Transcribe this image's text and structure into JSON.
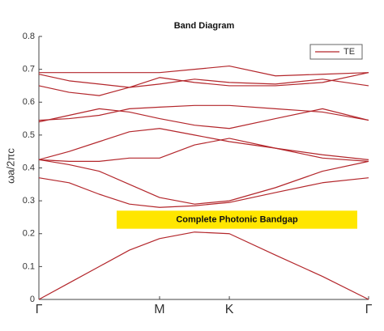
{
  "chart_data": {
    "type": "line",
    "title": "Band Diagram",
    "ylabel": "ωa/2πc",
    "x": [
      0,
      0.125,
      0.25,
      0.375,
      0.5,
      0.645,
      0.789,
      0.98,
      1.175,
      1.366
    ],
    "xlim": [
      0,
      1.366
    ],
    "xticks": [
      {
        "value": 0,
        "label": "Γ"
      },
      {
        "value": 0.5,
        "label": "M"
      },
      {
        "value": 0.789,
        "label": "K"
      },
      {
        "value": 1.366,
        "label": "Γ"
      }
    ],
    "ylim": [
      0,
      0.8
    ],
    "yticks": [
      0,
      0.1,
      0.2,
      0.3,
      0.4,
      0.5,
      0.6,
      0.7,
      0.8
    ],
    "legend_label": "TE",
    "legend": "upper right",
    "color": "#b3262b",
    "series": [
      {
        "values": [
          0,
          0.05,
          0.1,
          0.15,
          0.185,
          0.205,
          0.2,
          0.135,
          0.07,
          0
        ]
      },
      {
        "values": [
          0.37,
          0.355,
          0.32,
          0.29,
          0.28,
          0.285,
          0.295,
          0.325,
          0.355,
          0.37
        ]
      },
      {
        "values": [
          0.425,
          0.41,
          0.39,
          0.35,
          0.31,
          0.29,
          0.3,
          0.34,
          0.39,
          0.42
        ]
      },
      {
        "values": [
          0.425,
          0.42,
          0.42,
          0.43,
          0.43,
          0.47,
          0.49,
          0.46,
          0.43,
          0.42
        ]
      },
      {
        "values": [
          0.425,
          0.45,
          0.48,
          0.51,
          0.52,
          0.5,
          0.48,
          0.46,
          0.44,
          0.425
        ]
      },
      {
        "values": [
          0.54,
          0.56,
          0.58,
          0.57,
          0.55,
          0.53,
          0.52,
          0.55,
          0.58,
          0.545
        ]
      },
      {
        "values": [
          0.545,
          0.55,
          0.56,
          0.58,
          0.585,
          0.59,
          0.59,
          0.58,
          0.57,
          0.545
        ]
      },
      {
        "values": [
          0.65,
          0.63,
          0.62,
          0.645,
          0.675,
          0.66,
          0.65,
          0.65,
          0.66,
          0.69
        ]
      },
      {
        "values": [
          0.685,
          0.665,
          0.655,
          0.645,
          0.655,
          0.67,
          0.66,
          0.655,
          0.67,
          0.65
        ]
      },
      {
        "values": [
          0.69,
          0.69,
          0.69,
          0.69,
          0.69,
          0.7,
          0.71,
          0.68,
          0.685,
          0.69
        ]
      }
    ],
    "bandgap": {
      "label": "Complete Photonic Bandgap",
      "range": [
        0.215,
        0.27
      ],
      "color": "#ffe600"
    }
  }
}
